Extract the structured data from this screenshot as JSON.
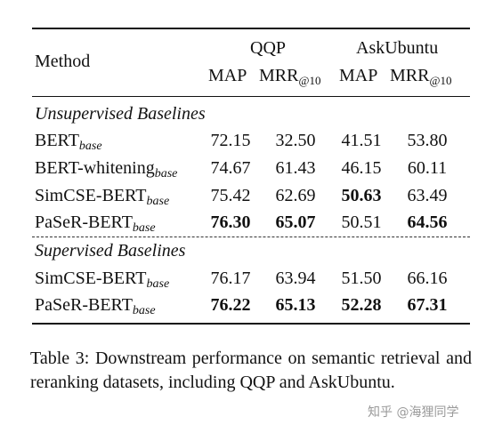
{
  "header": {
    "method": "Method",
    "group_qqp": "QQP",
    "group_ask": "AskUbuntu",
    "map": "MAP",
    "mrr": "MRR",
    "mrr_sub": "@10"
  },
  "sections": [
    {
      "title": "Unsupervised Baselines",
      "rows": [
        {
          "name": "BERT",
          "sub": "base",
          "values": [
            "72.15",
            "32.50",
            "41.51",
            "53.80"
          ],
          "bold": [
            false,
            false,
            false,
            false
          ]
        },
        {
          "name": "BERT-whitening",
          "sub": "base",
          "values": [
            "74.67",
            "61.43",
            "46.15",
            "60.11"
          ],
          "bold": [
            false,
            false,
            false,
            false
          ]
        },
        {
          "name": "SimCSE-BERT",
          "sub": "base",
          "values": [
            "75.42",
            "62.69",
            "50.63",
            "63.49"
          ],
          "bold": [
            false,
            false,
            true,
            false
          ]
        },
        {
          "name": "PaSeR-BERT",
          "sub": "base",
          "values": [
            "76.30",
            "65.07",
            "50.51",
            "64.56"
          ],
          "bold": [
            true,
            true,
            false,
            true
          ]
        }
      ]
    },
    {
      "title": "Supervised Baselines",
      "rows": [
        {
          "name": "SimCSE-BERT",
          "sub": "base",
          "values": [
            "76.17",
            "63.94",
            "51.50",
            "66.16"
          ],
          "bold": [
            false,
            false,
            false,
            false
          ]
        },
        {
          "name": "PaSeR-BERT",
          "sub": "base",
          "values": [
            "76.22",
            "65.13",
            "52.28",
            "67.31"
          ],
          "bold": [
            true,
            true,
            true,
            true
          ]
        }
      ]
    }
  ],
  "caption": "Table 3:  Downstream performance on semantic retrieval and reranking datasets, including QQP and AskUbuntu.",
  "watermark": "知乎 @海狸同学"
}
